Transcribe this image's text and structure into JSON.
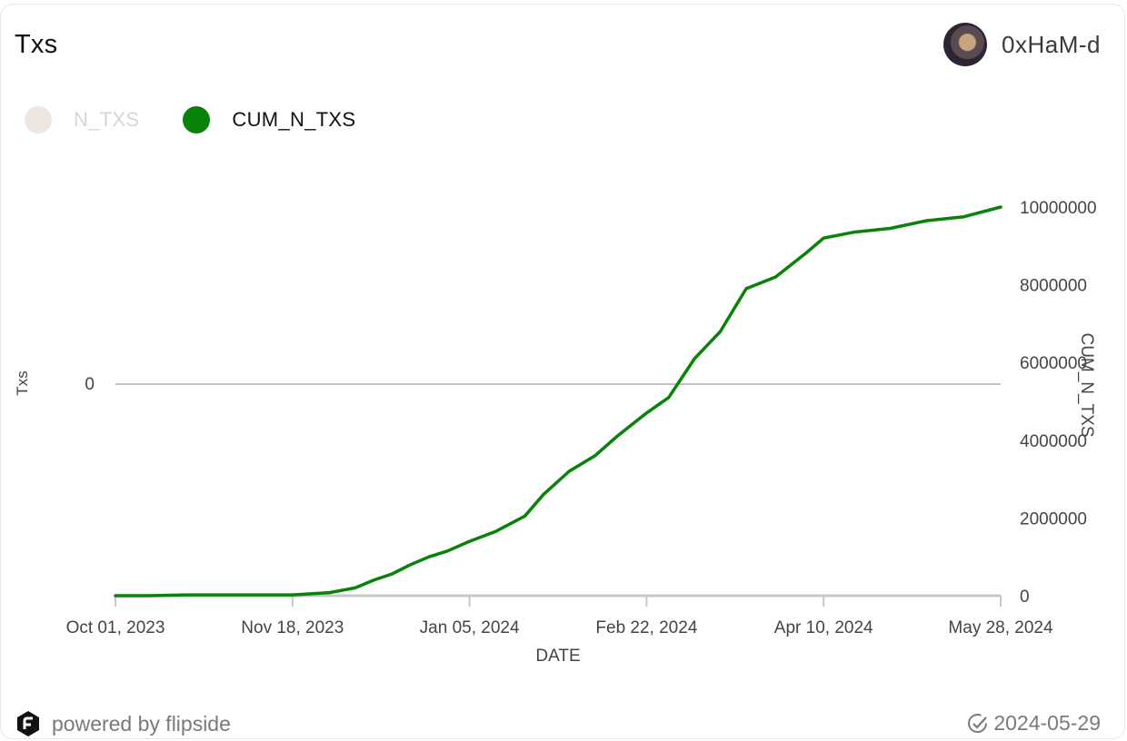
{
  "header": {
    "title": "Txs",
    "username": "0xHaM-d",
    "avatar_icon": "user-avatar"
  },
  "legend": {
    "items": [
      {
        "label": "N_TXS",
        "color": "#efe6e1",
        "active": false
      },
      {
        "label": "CUM_N_TXS",
        "color": "#098209",
        "active": true
      }
    ]
  },
  "footer": {
    "powered": "powered by flipside",
    "date": "2024-05-29",
    "logo_icon": "flipside-logo",
    "status_icon": "check-circle-icon"
  },
  "chart_data": {
    "type": "line",
    "xlabel": "DATE",
    "ylabel_left": "Txs",
    "ylabel_right": "CUM_N_TXS",
    "left_ticks": [
      "0"
    ],
    "right_ticks": [
      "0",
      "2000000",
      "4000000",
      "6000000",
      "8000000",
      "10000000"
    ],
    "x_ticks": [
      "Oct 01, 2023",
      "Nov 18, 2023",
      "Jan 05, 2024",
      "Feb 22, 2024",
      "Apr 10, 2024",
      "May 28, 2024"
    ],
    "xlim": [
      "2023-10-01",
      "2024-05-28"
    ],
    "ylim_right": [
      0,
      10000000
    ],
    "grid": false,
    "series": [
      {
        "name": "CUM_N_TXS",
        "color": "#098209",
        "x": [
          "2023-10-01",
          "2023-10-10",
          "2023-10-20",
          "2023-11-01",
          "2023-11-18",
          "2023-11-28",
          "2023-12-05",
          "2023-12-10",
          "2023-12-15",
          "2023-12-20",
          "2023-12-25",
          "2023-12-30",
          "2024-01-05",
          "2024-01-12",
          "2024-01-20",
          "2024-01-25",
          "2024-02-01",
          "2024-02-08",
          "2024-02-14",
          "2024-02-22",
          "2024-02-28",
          "2024-03-06",
          "2024-03-13",
          "2024-03-20",
          "2024-03-28",
          "2024-04-05",
          "2024-04-10",
          "2024-04-18",
          "2024-04-28",
          "2024-05-08",
          "2024-05-18",
          "2024-05-28"
        ],
        "values": [
          0,
          0,
          20000,
          20000,
          20000,
          80000,
          200000,
          400000,
          560000,
          800000,
          1000000,
          1150000,
          1400000,
          1650000,
          2050000,
          2600000,
          3200000,
          3600000,
          4100000,
          4700000,
          5100000,
          6100000,
          6800000,
          7900000,
          8200000,
          8800000,
          9200000,
          9350000,
          9450000,
          9650000,
          9750000,
          10000000
        ]
      }
    ]
  }
}
